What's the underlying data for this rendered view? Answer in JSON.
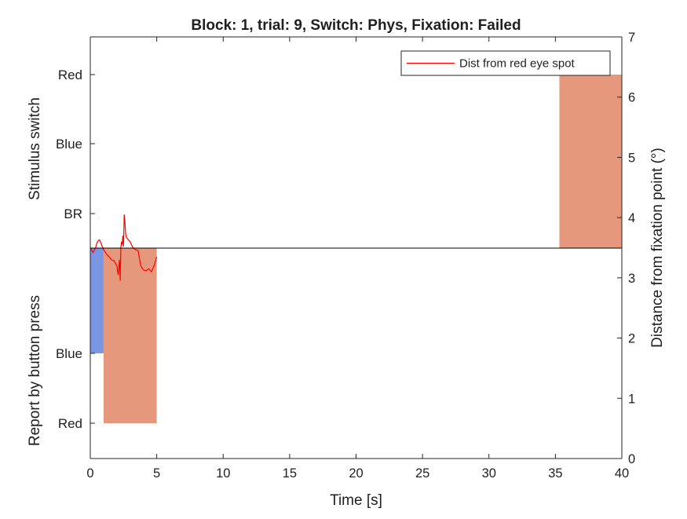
{
  "chart_data": {
    "type": "area",
    "title": "Block: 1, trial: 9, Switch: Phys, Fixation: Failed",
    "xlabel": "Time [s]",
    "xlim": [
      0,
      40
    ],
    "xticks": [
      0,
      5,
      10,
      15,
      20,
      25,
      30,
      35,
      40
    ],
    "left_axis": {
      "upper_label": "Stimulus switch",
      "lower_label": "Report by button press",
      "upper_categories": [
        "Red",
        "Blue",
        "BR"
      ],
      "lower_categories": [
        "Blue",
        "Red"
      ]
    },
    "right_axis": {
      "label": "Distance from fixation point (°)",
      "ylim": [
        0,
        7
      ],
      "ticks": [
        0,
        1,
        2,
        3,
        4,
        5,
        6,
        7
      ]
    },
    "stimulus_switch": [
      {
        "category": "Red",
        "x_start": 35.3,
        "x_end": 40,
        "color": "#e5987b"
      }
    ],
    "button_report": [
      {
        "category": "Blue",
        "x_start": 0,
        "x_end": 1.0,
        "color": "#7b96e2"
      },
      {
        "category": "Red",
        "x_start": 1.0,
        "x_end": 5.0,
        "color": "#e5987b"
      }
    ],
    "series": [
      {
        "name": "Dist from red eye spot",
        "color": "#ff0000",
        "x": [
          0.0,
          0.2,
          0.4,
          0.5,
          0.6,
          0.7,
          0.8,
          0.9,
          1.0,
          1.2,
          1.4,
          1.6,
          1.8,
          2.0,
          2.1,
          2.2,
          2.25,
          2.3,
          2.35,
          2.4,
          2.45,
          2.5,
          2.55,
          2.6,
          2.65,
          2.7,
          2.8,
          2.9,
          3.0,
          3.1,
          3.2,
          3.4,
          3.6,
          3.8,
          4.0,
          4.2,
          4.4,
          4.6,
          4.8,
          5.0
        ],
        "y": [
          3.5,
          3.42,
          3.5,
          3.58,
          3.62,
          3.63,
          3.58,
          3.52,
          3.47,
          3.4,
          3.35,
          3.3,
          3.28,
          3.2,
          3.05,
          3.3,
          2.95,
          3.5,
          3.6,
          3.55,
          3.7,
          3.52,
          4.05,
          3.95,
          3.75,
          3.68,
          3.65,
          3.62,
          3.6,
          3.55,
          3.5,
          3.47,
          3.45,
          3.2,
          3.13,
          3.12,
          3.15,
          3.1,
          3.2,
          3.35
        ]
      }
    ],
    "legend_position": "top-right",
    "grid": false
  }
}
